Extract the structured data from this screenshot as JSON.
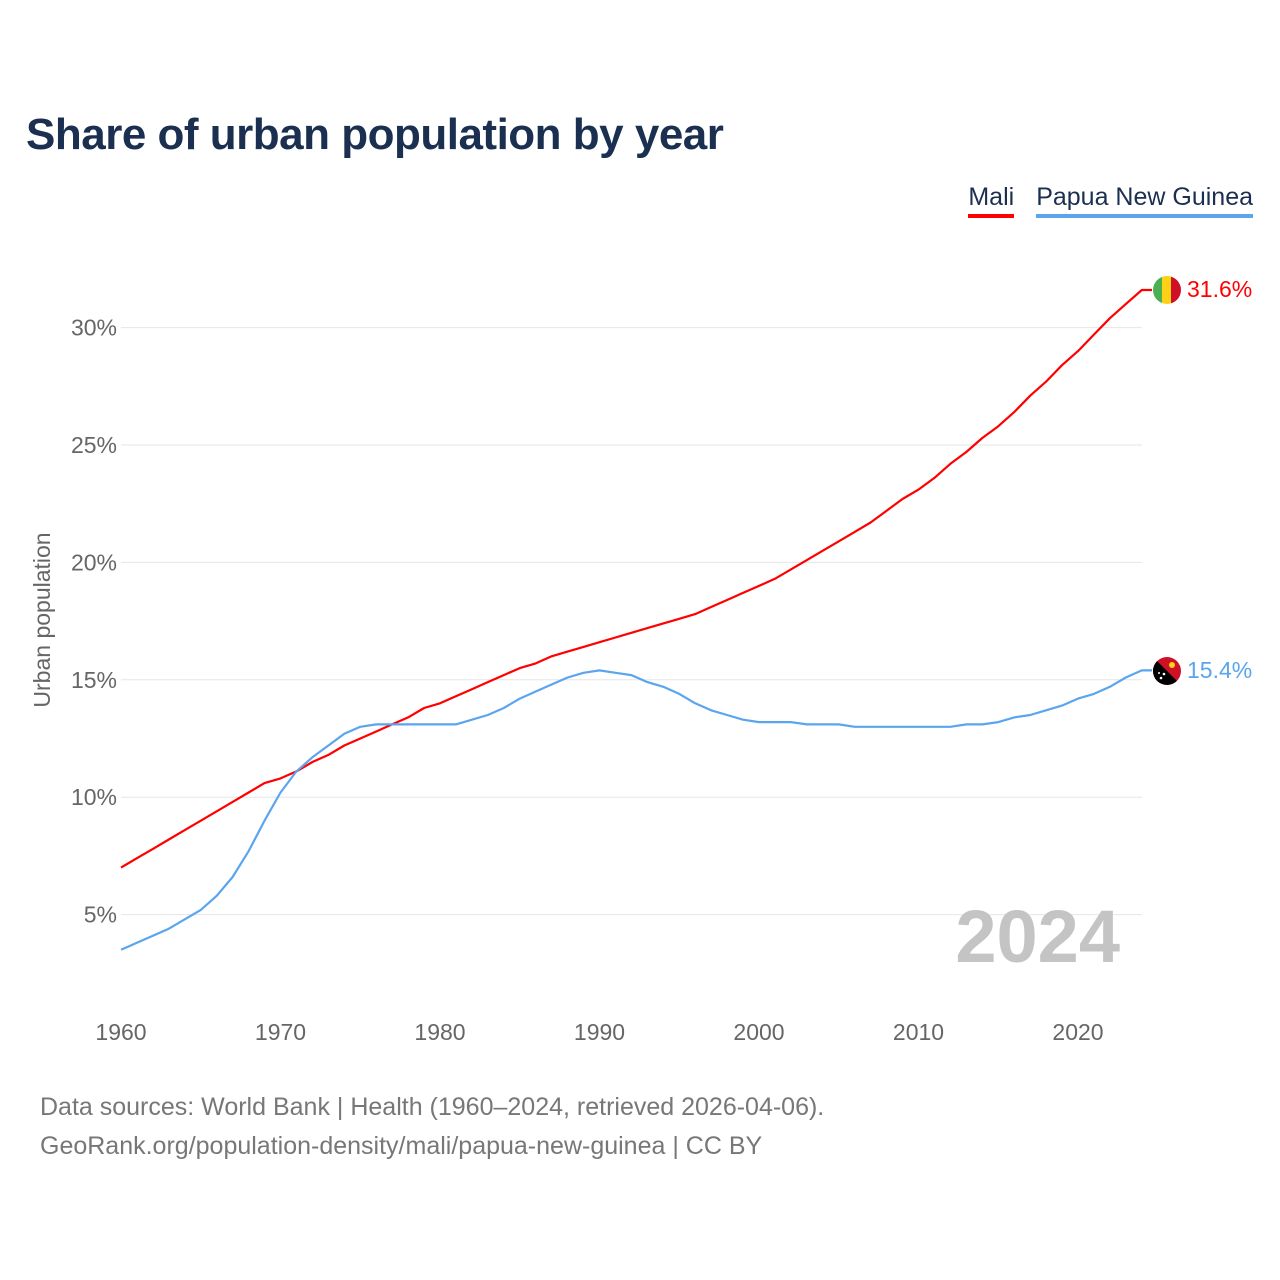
{
  "title": "Share of urban population by year",
  "legend": [
    {
      "label": "Mali",
      "color": "#ff0000"
    },
    {
      "label": "Papua New Guinea",
      "color": "#5aa5ee"
    }
  ],
  "year_watermark": "2024",
  "source_line1": "Data sources: World Bank | Health (1960–2024, retrieved 2026-04-06).",
  "source_line2": "GeoRank.org/population-density/mali/papua-new-guinea | CC BY",
  "chart_data": {
    "type": "line",
    "title": "Share of urban population by year",
    "xlabel": "",
    "ylabel": "Urban population",
    "xlim": [
      1960,
      2024
    ],
    "ylim": [
      0,
      33
    ],
    "x_ticks": [
      1960,
      1970,
      1980,
      1990,
      2000,
      2010,
      2020
    ],
    "y_ticks": [
      5,
      10,
      15,
      20,
      25,
      30
    ],
    "y_tick_labels": [
      "5%",
      "10%",
      "15%",
      "20%",
      "25%",
      "30%"
    ],
    "grid": true,
    "legend_position": "top-right",
    "x_start": 1960,
    "series": [
      {
        "name": "Mali",
        "color": "#ff0000",
        "end_label": "31.6%",
        "values": [
          7.0,
          7.4,
          7.8,
          8.2,
          8.6,
          9.0,
          9.4,
          9.8,
          10.2,
          10.6,
          10.8,
          11.1,
          11.5,
          11.8,
          12.2,
          12.5,
          12.8,
          13.1,
          13.4,
          13.8,
          14.0,
          14.3,
          14.6,
          14.9,
          15.2,
          15.5,
          15.7,
          16.0,
          16.2,
          16.4,
          16.6,
          16.8,
          17.0,
          17.2,
          17.4,
          17.6,
          17.8,
          18.1,
          18.4,
          18.7,
          19.0,
          19.3,
          19.7,
          20.1,
          20.5,
          20.9,
          21.3,
          21.7,
          22.2,
          22.7,
          23.1,
          23.6,
          24.2,
          24.7,
          25.3,
          25.8,
          26.4,
          27.1,
          27.7,
          28.4,
          29.0,
          29.7,
          30.4,
          31.0,
          31.6
        ]
      },
      {
        "name": "Papua New Guinea",
        "color": "#5aa5ee",
        "end_label": "15.4%",
        "values": [
          3.5,
          3.8,
          4.1,
          4.4,
          4.8,
          5.2,
          5.8,
          6.6,
          7.7,
          9.0,
          10.2,
          11.1,
          11.7,
          12.2,
          12.7,
          13.0,
          13.1,
          13.1,
          13.1,
          13.1,
          13.1,
          13.1,
          13.3,
          13.5,
          13.8,
          14.2,
          14.5,
          14.8,
          15.1,
          15.3,
          15.4,
          15.3,
          15.2,
          14.9,
          14.7,
          14.4,
          14.0,
          13.7,
          13.5,
          13.3,
          13.2,
          13.2,
          13.2,
          13.1,
          13.1,
          13.1,
          13.0,
          13.0,
          13.0,
          13.0,
          13.0,
          13.0,
          13.0,
          13.1,
          13.1,
          13.2,
          13.4,
          13.5,
          13.7,
          13.9,
          14.2,
          14.4,
          14.7,
          15.1,
          15.4
        ]
      }
    ]
  }
}
